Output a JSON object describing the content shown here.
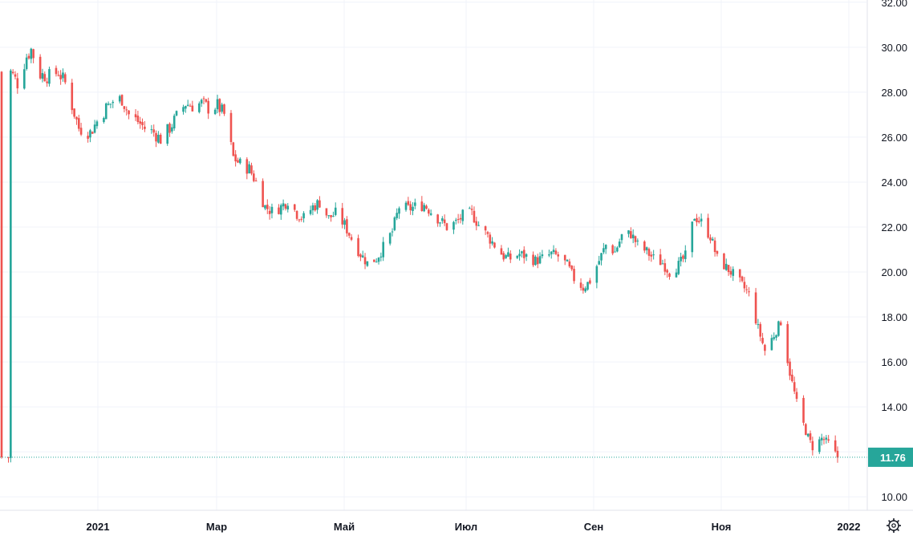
{
  "chart_data": {
    "type": "candlestick",
    "x_axis": {
      "tick_labels": [
        "2021",
        "Мар",
        "Май",
        "Июл",
        "Сен",
        "Ноя",
        "2022"
      ]
    },
    "y_axis": {
      "range": [
        9.4,
        32.1
      ],
      "ticks": [
        10.0,
        12.0,
        14.0,
        16.0,
        18.0,
        20.0,
        22.0,
        24.0,
        26.0,
        28.0,
        30.0,
        32.0
      ],
      "tick_labels": [
        "10.00",
        "12.00",
        "14.00",
        "16.00",
        "18.00",
        "20.00",
        "22.00",
        "24.00",
        "26.00",
        "28.00",
        "30.00",
        "32.00"
      ]
    },
    "grid": true,
    "last_price": {
      "value": 11.76,
      "label": "11.76"
    },
    "colors": {
      "up": "#26a69a",
      "down": "#ef5350",
      "grid": "#f0f3fa",
      "price_line": "#26a69a"
    },
    "close_path": [
      [
        "2020-12-01",
        28.9
      ],
      [
        "2020-12-04",
        28.4
      ],
      [
        "2020-12-08",
        29.6
      ],
      [
        "2020-12-10",
        29.9
      ],
      [
        "2020-12-14",
        28.8
      ],
      [
        "2020-12-18",
        28.7
      ],
      [
        "2020-12-22",
        28.9
      ],
      [
        "2020-12-25",
        28.4
      ],
      [
        "2020-12-28",
        27.4
      ],
      [
        "2020-12-31",
        26.4
      ],
      [
        "2021-01-05",
        26.2
      ],
      [
        "2021-01-08",
        26.7
      ],
      [
        "2021-01-12",
        27.3
      ],
      [
        "2021-01-15",
        27.6
      ],
      [
        "2021-01-19",
        27.7
      ],
      [
        "2021-01-22",
        27.0
      ],
      [
        "2021-01-26",
        26.7
      ],
      [
        "2021-01-29",
        26.4
      ],
      [
        "2021-02-02",
        26.2
      ],
      [
        "2021-02-05",
        25.9
      ],
      [
        "2021-02-09",
        26.4
      ],
      [
        "2021-02-12",
        26.9
      ],
      [
        "2021-02-16",
        27.5
      ],
      [
        "2021-02-19",
        27.4
      ],
      [
        "2021-02-23",
        27.5
      ],
      [
        "2021-02-26",
        27.3
      ],
      [
        "2021-03-02",
        27.4
      ],
      [
        "2021-03-05",
        27.0
      ],
      [
        "2021-03-09",
        25.1
      ],
      [
        "2021-03-12",
        24.8
      ],
      [
        "2021-03-16",
        24.6
      ],
      [
        "2021-03-19",
        24.0
      ],
      [
        "2021-03-23",
        22.9
      ],
      [
        "2021-03-26",
        22.7
      ],
      [
        "2021-03-30",
        22.9
      ],
      [
        "2021-04-02",
        23.2
      ],
      [
        "2021-04-06",
        22.6
      ],
      [
        "2021-04-09",
        22.4
      ],
      [
        "2021-04-13",
        22.9
      ],
      [
        "2021-04-16",
        23.1
      ],
      [
        "2021-04-20",
        22.4
      ],
      [
        "2021-04-23",
        22.6
      ],
      [
        "2021-04-27",
        22.1
      ],
      [
        "2021-04-30",
        21.5
      ],
      [
        "2021-05-04",
        20.8
      ],
      [
        "2021-05-07",
        20.4
      ],
      [
        "2021-05-11",
        20.6
      ],
      [
        "2021-05-14",
        21.1
      ],
      [
        "2021-05-18",
        21.8
      ],
      [
        "2021-05-21",
        22.9
      ],
      [
        "2021-05-25",
        22.8
      ],
      [
        "2021-05-28",
        22.9
      ],
      [
        "2021-06-01",
        23.0
      ],
      [
        "2021-06-04",
        22.7
      ],
      [
        "2021-06-08",
        22.3
      ],
      [
        "2021-06-11",
        22.0
      ],
      [
        "2021-06-15",
        22.2
      ],
      [
        "2021-06-18",
        22.5
      ],
      [
        "2021-06-22",
        22.6
      ],
      [
        "2021-06-25",
        22.1
      ],
      [
        "2021-06-29",
        21.6
      ],
      [
        "2021-07-02",
        21.2
      ],
      [
        "2021-07-06",
        20.7
      ],
      [
        "2021-07-09",
        20.6
      ],
      [
        "2021-07-13",
        20.8
      ],
      [
        "2021-07-16",
        20.7
      ],
      [
        "2021-07-20",
        20.5
      ],
      [
        "2021-07-23",
        20.6
      ],
      [
        "2021-07-27",
        20.8
      ],
      [
        "2021-07-30",
        20.7
      ],
      [
        "2021-08-03",
        20.3
      ],
      [
        "2021-08-06",
        19.7
      ],
      [
        "2021-08-10",
        19.3
      ],
      [
        "2021-08-13",
        19.6
      ],
      [
        "2021-08-17",
        20.5
      ],
      [
        "2021-08-20",
        21.2
      ],
      [
        "2021-08-24",
        20.9
      ],
      [
        "2021-08-27",
        21.6
      ],
      [
        "2021-08-31",
        21.7
      ],
      [
        "2021-09-03",
        21.2
      ],
      [
        "2021-09-07",
        20.9
      ],
      [
        "2021-09-10",
        20.6
      ],
      [
        "2021-09-14",
        20.4
      ],
      [
        "2021-09-17",
        20.0
      ],
      [
        "2021-09-21",
        20.3
      ],
      [
        "2021-09-24",
        20.7
      ],
      [
        "2021-09-28",
        22.5
      ],
      [
        "2021-10-01",
        22.2
      ],
      [
        "2021-10-05",
        21.6
      ],
      [
        "2021-10-08",
        20.6
      ],
      [
        "2021-10-12",
        20.2
      ],
      [
        "2021-10-15",
        19.9
      ],
      [
        "2021-10-19",
        19.4
      ],
      [
        "2021-10-22",
        19.0
      ],
      [
        "2021-10-26",
        17.5
      ],
      [
        "2021-10-29",
        16.5
      ],
      [
        "2021-11-02",
        17.2
      ],
      [
        "2021-11-05",
        17.8
      ],
      [
        "2021-11-09",
        15.5
      ],
      [
        "2021-11-12",
        14.2
      ],
      [
        "2021-11-16",
        12.9
      ],
      [
        "2021-11-19",
        12.2
      ],
      [
        "2021-11-23",
        12.6
      ],
      [
        "2021-11-26",
        12.4
      ],
      [
        "2021-11-30",
        11.76
      ]
    ]
  },
  "toolbar": {
    "settings_icon": "gear-icon"
  }
}
